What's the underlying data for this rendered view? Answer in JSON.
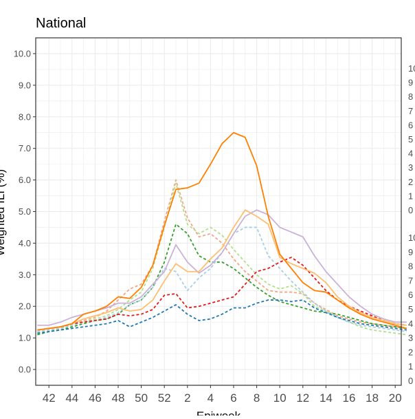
{
  "chart_data": {
    "type": "line",
    "title": "National",
    "xlabel": "Epiweek",
    "ylabel": "Weighted ILI (%)",
    "ylim": [
      -0.5,
      10.5
    ],
    "y_ticks": [
      "0.0",
      "1.0",
      "2.0",
      "3.0",
      "4.0",
      "5.0",
      "6.0",
      "7.0",
      "8.0",
      "9.0",
      "10.0"
    ],
    "x_ticks": [
      "42",
      "44",
      "46",
      "48",
      "50",
      "52",
      "2",
      "4",
      "6",
      "8",
      "10",
      "12",
      "14",
      "16",
      "18",
      "20"
    ],
    "x": [
      "41",
      "42",
      "43",
      "44",
      "45",
      "46",
      "47",
      "48",
      "49",
      "50",
      "51",
      "52",
      "1",
      "2",
      "3",
      "4",
      "5",
      "6",
      "7",
      "8",
      "9",
      "10",
      "11",
      "12",
      "13",
      "14",
      "15",
      "16",
      "17",
      "18",
      "19",
      "20",
      "21"
    ],
    "grid": true,
    "right_axis_labels_top": [
      "10",
      "9",
      "8",
      "7",
      "6",
      "5",
      "4",
      "3",
      "2",
      "1",
      "0"
    ],
    "right_axis_labels_bottom": [
      "10",
      "9",
      "8",
      "7",
      "6",
      "5",
      "4",
      "3",
      "2",
      "1",
      "0"
    ],
    "series": [
      {
        "color": "#f4a582",
        "dash": true,
        "values": [
          1.2,
          1.25,
          1.3,
          1.45,
          1.55,
          1.65,
          1.85,
          2.2,
          2.55,
          2.7,
          3.3,
          4.7,
          6.0,
          4.8,
          4.2,
          4.3,
          4.0,
          3.5,
          3.1,
          2.8,
          2.5,
          2.45,
          2.45,
          2.4,
          2.1,
          1.9,
          1.7,
          1.6,
          1.5,
          1.45,
          1.4,
          1.35,
          1.3
        ]
      },
      {
        "color": "#b2df8a",
        "dash": true,
        "values": [
          1.15,
          1.2,
          1.3,
          1.4,
          1.5,
          1.6,
          1.7,
          1.9,
          2.2,
          2.45,
          3.2,
          4.5,
          5.9,
          4.6,
          4.3,
          4.5,
          4.25,
          3.8,
          3.4,
          3.0,
          2.7,
          2.55,
          2.65,
          2.4,
          2.0,
          1.85,
          1.65,
          1.5,
          1.35,
          1.25,
          1.2,
          1.15,
          1.1
        ]
      },
      {
        "color": "#33a02c",
        "dash": true,
        "values": [
          1.1,
          1.2,
          1.25,
          1.35,
          1.45,
          1.55,
          1.6,
          1.75,
          2.05,
          2.2,
          2.6,
          3.4,
          4.6,
          4.3,
          3.6,
          3.4,
          3.4,
          3.2,
          2.9,
          2.6,
          2.35,
          2.15,
          2.05,
          1.95,
          1.85,
          1.8,
          1.75,
          1.65,
          1.55,
          1.45,
          1.4,
          1.35,
          1.3
        ]
      },
      {
        "color": "#a6cee3",
        "dash": true,
        "values": [
          1.2,
          1.25,
          1.3,
          1.4,
          1.5,
          1.55,
          1.65,
          1.8,
          2.05,
          2.2,
          2.6,
          3.2,
          3.1,
          2.5,
          2.9,
          3.2,
          3.7,
          4.3,
          4.5,
          4.5,
          3.6,
          3.2,
          2.8,
          2.45,
          2.1,
          1.85,
          1.65,
          1.5,
          1.4,
          1.35,
          1.3,
          1.25,
          1.2
        ]
      },
      {
        "color": "#e31a1c",
        "dash": true,
        "values": [
          1.25,
          1.3,
          1.35,
          1.45,
          1.5,
          1.55,
          1.6,
          1.75,
          1.7,
          1.75,
          1.9,
          2.35,
          2.4,
          1.95,
          2.0,
          2.1,
          2.2,
          2.3,
          2.7,
          3.1,
          3.2,
          3.4,
          3.55,
          3.3,
          2.9,
          2.5,
          2.2,
          2.0,
          1.85,
          1.7,
          1.55,
          1.45,
          1.4
        ]
      },
      {
        "color": "#1f78b4",
        "dash": true,
        "values": [
          1.15,
          1.2,
          1.25,
          1.3,
          1.35,
          1.4,
          1.45,
          1.55,
          1.35,
          1.5,
          1.65,
          1.85,
          2.05,
          1.75,
          1.55,
          1.6,
          1.75,
          1.95,
          1.95,
          2.1,
          2.2,
          2.2,
          2.15,
          2.2,
          1.95,
          1.8,
          1.65,
          1.55,
          1.45,
          1.4,
          1.35,
          1.3,
          1.25
        ]
      },
      {
        "color": "#cab2d6",
        "dash": false,
        "values": [
          1.4,
          1.4,
          1.5,
          1.65,
          1.75,
          1.85,
          1.95,
          2.1,
          2.1,
          2.3,
          2.7,
          3.1,
          3.95,
          3.4,
          3.05,
          3.3,
          3.7,
          4.3,
          4.85,
          5.05,
          4.9,
          4.5,
          4.35,
          4.2,
          3.6,
          3.1,
          2.7,
          2.3,
          2.0,
          1.75,
          1.6,
          1.5,
          1.5
        ]
      },
      {
        "color": "#fdbf6f",
        "dash": false,
        "values": [
          1.25,
          1.3,
          1.35,
          1.45,
          1.6,
          1.7,
          1.8,
          1.95,
          1.85,
          1.9,
          2.2,
          2.8,
          3.35,
          3.1,
          3.1,
          3.5,
          3.85,
          4.5,
          5.05,
          4.85,
          4.6,
          3.55,
          3.35,
          3.2,
          3.05,
          2.75,
          2.3,
          2.0,
          1.8,
          1.65,
          1.55,
          1.45,
          1.4
        ]
      },
      {
        "color": "#ff7f00",
        "dash": false,
        "values": [
          1.25,
          1.3,
          1.35,
          1.45,
          1.75,
          1.85,
          2.0,
          2.3,
          2.25,
          2.6,
          3.3,
          4.55,
          5.7,
          5.75,
          5.9,
          6.5,
          7.15,
          7.5,
          7.35,
          6.45,
          4.85,
          3.65,
          3.2,
          2.75,
          2.5,
          2.45,
          2.2,
          1.95,
          1.75,
          1.6,
          1.5,
          1.4,
          1.3
        ]
      }
    ]
  }
}
